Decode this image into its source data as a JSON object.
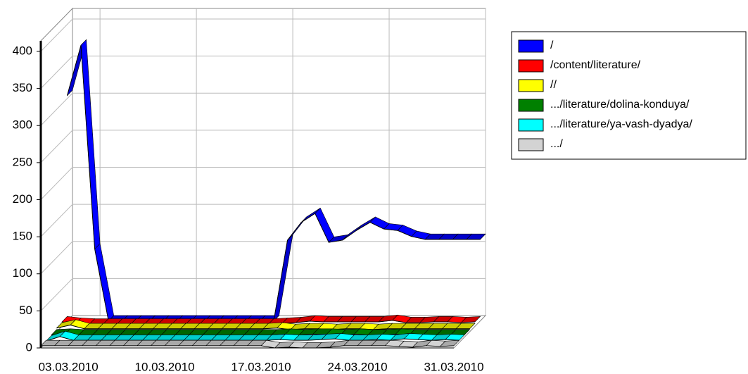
{
  "chart_data": {
    "type": "line3d",
    "categories": [
      null,
      null,
      "03.03.2010",
      null,
      null,
      null,
      null,
      null,
      null,
      "10.03.2010",
      null,
      null,
      null,
      null,
      null,
      null,
      "17.03.2010",
      null,
      null,
      null,
      null,
      null,
      null,
      "24.03.2010",
      null,
      null,
      null,
      null,
      null,
      null,
      "31.03.2010"
    ],
    "series": [
      {
        "name": "/",
        "color": "#0000ff",
        "values": [
          304,
          372,
          97,
          0,
          0,
          0,
          0,
          0,
          0,
          0,
          0,
          0,
          0,
          0,
          0,
          0,
          109,
          133,
          145,
          106,
          109,
          122,
          133,
          124,
          122,
          114,
          110,
          110,
          110,
          110,
          110
        ]
      },
      {
        "name": "/content/literature/",
        "color": "#ff0000",
        "values": [
          6,
          4,
          3,
          3,
          3,
          3,
          3,
          3,
          3,
          3,
          3,
          3,
          3,
          3,
          3,
          3,
          4,
          5,
          7,
          6,
          6,
          6,
          6,
          6,
          8,
          5,
          5,
          6,
          6,
          5,
          6
        ]
      },
      {
        "name": "//",
        "color": "#ffff00",
        "values": [
          5,
          9,
          4,
          4,
          4,
          4,
          4,
          4,
          4,
          4,
          4,
          4,
          4,
          4,
          4,
          4,
          5,
          3,
          4,
          4,
          3,
          4,
          4,
          3,
          4,
          4,
          4,
          4,
          4,
          4,
          4
        ]
      },
      {
        "name": ".../literature/dolina-konduya/",
        "color": "#008000",
        "values": [
          3,
          4,
          3,
          3,
          3,
          3,
          3,
          3,
          3,
          3,
          3,
          3,
          3,
          3,
          3,
          3,
          3,
          4,
          3,
          4,
          4,
          3,
          4,
          3,
          3,
          4,
          3,
          3,
          3,
          3,
          3
        ]
      },
      {
        "name": ".../literature/ya-vash-dyadya/",
        "color": "#00ffff",
        "values": [
          2,
          8,
          3,
          3,
          3,
          3,
          3,
          3,
          3,
          3,
          3,
          3,
          3,
          3,
          3,
          3,
          3,
          4,
          3,
          3,
          4,
          5,
          3,
          3,
          4,
          3,
          5,
          4,
          3,
          4,
          3
        ]
      },
      {
        "name": ".../",
        "color": "#d3d3d3",
        "values": [
          3,
          3,
          3,
          3,
          3,
          3,
          3,
          3,
          3,
          3,
          3,
          3,
          3,
          3,
          3,
          3,
          3,
          0,
          1,
          0,
          0,
          1,
          3,
          3,
          3,
          3,
          2,
          1,
          3,
          2,
          3
        ]
      }
    ],
    "ylim": [
      0,
      400
    ],
    "yticks": [
      0,
      50,
      100,
      150,
      200,
      250,
      300,
      350,
      400
    ],
    "grid": true
  }
}
